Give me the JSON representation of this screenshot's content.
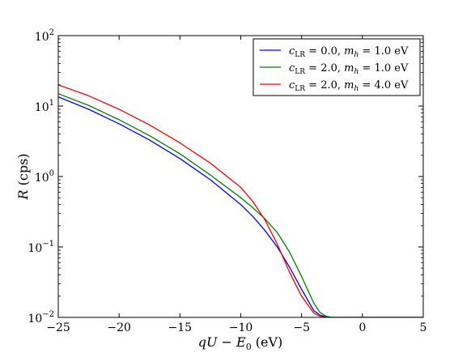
{
  "chart_data": {
    "type": "line",
    "xlabel": "qU − E₀ (eV)",
    "ylabel": "R (cps)",
    "xlim": [
      -25,
      5
    ],
    "ylim": [
      0.01,
      100
    ],
    "y_scale": "log",
    "grid": false,
    "legend_position": "top-right",
    "x_ticks": [
      -25,
      -20,
      -15,
      -10,
      -5,
      0,
      5
    ],
    "x_tick_labels": [
      "−25",
      "−20",
      "−15",
      "−10",
      "−5",
      "0",
      "5"
    ],
    "y_ticks": [
      0.01,
      0.1,
      1,
      10,
      100
    ],
    "y_tick_labels": [
      {
        "base": "10",
        "exp": "−2"
      },
      {
        "base": "10",
        "exp": "−1"
      },
      {
        "base": "10",
        "exp": "0"
      },
      {
        "base": "10",
        "exp": "1"
      },
      {
        "base": "10",
        "exp": "2"
      }
    ],
    "series": [
      {
        "name": "c_LR = 0.0, m_h = 1.0 eV",
        "color": "#0000ff",
        "x": [
          -25,
          -22.5,
          -20,
          -17.5,
          -15,
          -12.5,
          -10,
          -9,
          -8,
          -7,
          -6,
          -5,
          -4,
          -3.5,
          -3,
          -2.5,
          -2,
          0,
          5
        ],
        "y": [
          13.5,
          9.0,
          5.6,
          3.3,
          1.8,
          0.9,
          0.4,
          0.27,
          0.17,
          0.1,
          0.052,
          0.025,
          0.0125,
          0.0108,
          0.0102,
          0.01,
          0.01,
          0.01,
          0.01
        ]
      },
      {
        "name": "c_LR = 2.0, m_h = 1.0 eV",
        "color": "#008000",
        "x": [
          -25,
          -22.5,
          -20,
          -17.5,
          -15,
          -12.5,
          -10,
          -9,
          -8,
          -7,
          -6,
          -5,
          -4,
          -3.5,
          -3,
          -2.5,
          -2,
          0,
          5
        ],
        "y": [
          15.0,
          10.2,
          6.4,
          3.8,
          2.1,
          1.05,
          0.5,
          0.36,
          0.25,
          0.16,
          0.085,
          0.038,
          0.016,
          0.0118,
          0.0104,
          0.01,
          0.01,
          0.01,
          0.01
        ]
      },
      {
        "name": "c_LR = 2.0, m_h = 4.0 eV",
        "color": "#ff0000",
        "x": [
          -25,
          -22.5,
          -20,
          -17.5,
          -15,
          -12.5,
          -10,
          -9,
          -8,
          -7,
          -6,
          -5,
          -4,
          -3.5,
          -3,
          -2.5,
          -2,
          0,
          5
        ],
        "y": [
          20.0,
          14.0,
          9.0,
          5.4,
          3.0,
          1.55,
          0.7,
          0.44,
          0.24,
          0.11,
          0.044,
          0.02,
          0.0115,
          0.0104,
          0.01,
          0.01,
          0.01,
          0.01,
          0.01
        ]
      }
    ],
    "legend": [
      {
        "prefix": "c",
        "sub": "LR",
        "mid": " = 0.0, ",
        "m": "m",
        "msub": "h",
        "tail": " = 1.0 eV"
      },
      {
        "prefix": "c",
        "sub": "LR",
        "mid": " = 2.0, ",
        "m": "m",
        "msub": "h",
        "tail": " = 1.0 eV"
      },
      {
        "prefix": "c",
        "sub": "LR",
        "mid": " = 2.0, ",
        "m": "m",
        "msub": "h",
        "tail": " = 4.0 eV"
      }
    ]
  }
}
